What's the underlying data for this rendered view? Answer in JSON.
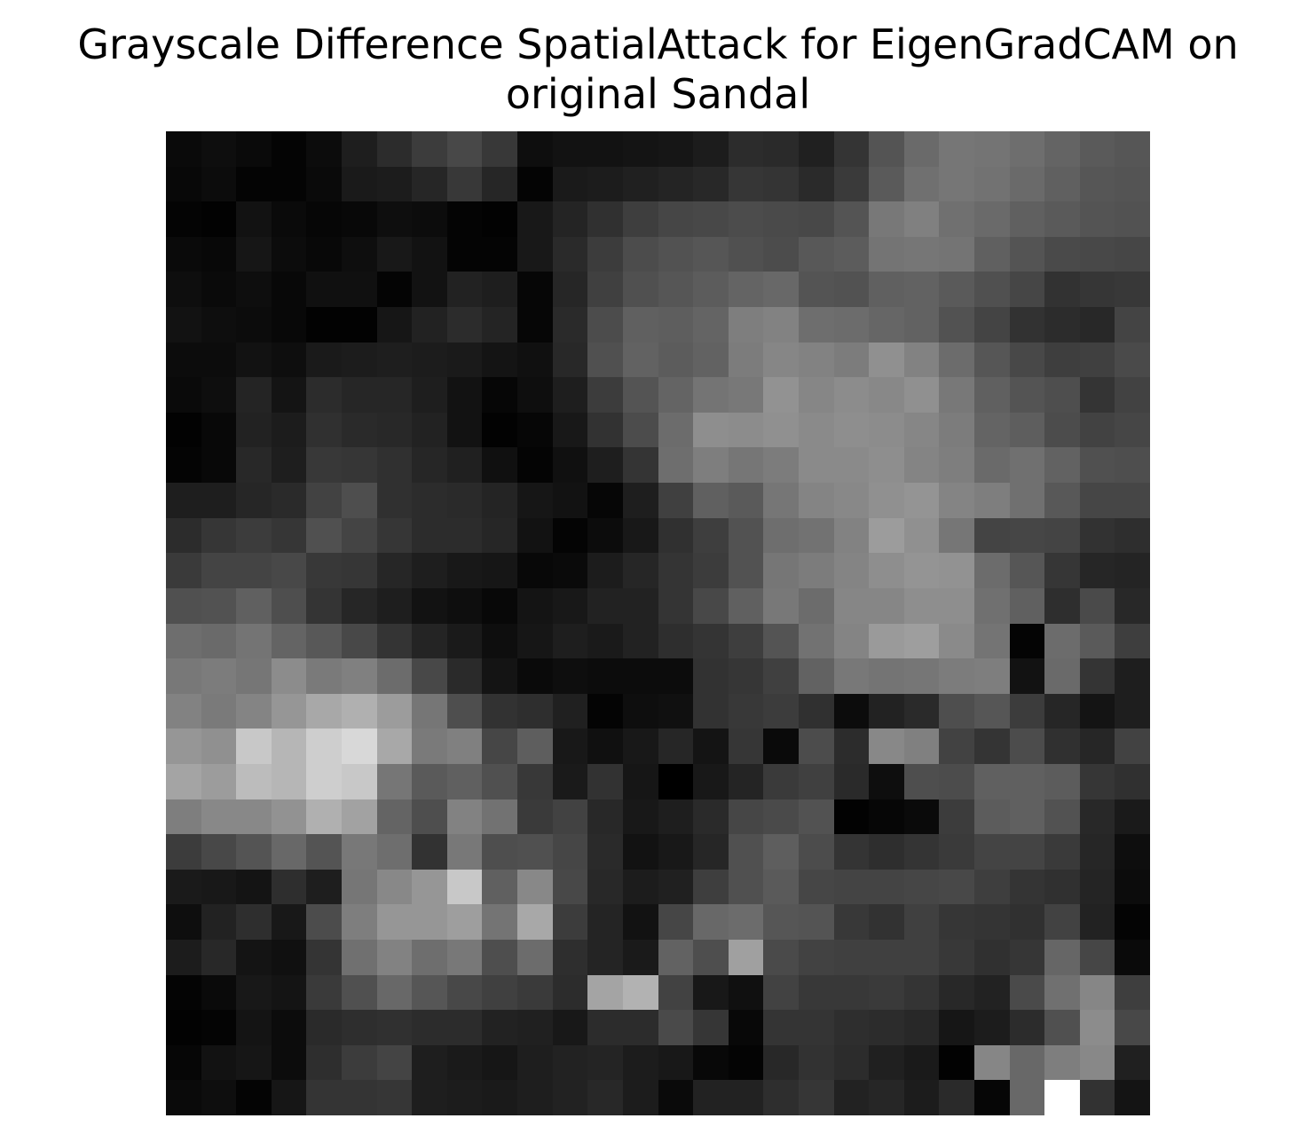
{
  "title_line_1": "Grayscale Difference SpatialAttack for EigenGradCAM on",
  "title_line_2": "original Sandal",
  "chart_data": {
    "type": "heatmap",
    "title": "Grayscale Difference SpatialAttack for EigenGradCAM on original Sandal",
    "colormap": "gray",
    "axes_visible": false,
    "value_range": [
      0,
      255
    ],
    "rows": 28,
    "cols": 28,
    "values": [
      [
        10,
        14,
        10,
        4,
        12,
        30,
        44,
        60,
        72,
        56,
        14,
        18,
        18,
        20,
        22,
        28,
        44,
        42,
        32,
        52,
        84,
        106,
        118,
        116,
        110,
        100,
        90,
        86
      ],
      [
        8,
        12,
        4,
        4,
        10,
        26,
        28,
        38,
        56,
        38,
        4,
        26,
        28,
        32,
        36,
        40,
        54,
        52,
        42,
        58,
        90,
        112,
        118,
        114,
        106,
        96,
        86,
        84
      ],
      [
        4,
        2,
        18,
        10,
        6,
        8,
        14,
        12,
        4,
        2,
        24,
        36,
        48,
        62,
        70,
        72,
        76,
        74,
        72,
        84,
        120,
        128,
        112,
        106,
        96,
        90,
        84,
        82
      ],
      [
        10,
        8,
        22,
        12,
        8,
        14,
        24,
        18,
        4,
        4,
        24,
        42,
        60,
        76,
        82,
        86,
        80,
        76,
        88,
        92,
        116,
        118,
        116,
        96,
        84,
        74,
        72,
        70
      ],
      [
        14,
        10,
        14,
        8,
        16,
        16,
        4,
        18,
        34,
        30,
        6,
        38,
        64,
        80,
        86,
        92,
        100,
        104,
        84,
        82,
        96,
        98,
        90,
        80,
        70,
        50,
        54,
        56
      ],
      [
        18,
        14,
        12,
        8,
        2,
        2,
        22,
        34,
        44,
        36,
        6,
        42,
        76,
        96,
        94,
        100,
        126,
        130,
        110,
        108,
        102,
        98,
        82,
        68,
        50,
        44,
        40,
        68
      ],
      [
        12,
        12,
        18,
        14,
        26,
        28,
        30,
        28,
        26,
        20,
        16,
        40,
        80,
        98,
        92,
        98,
        124,
        134,
        130,
        124,
        144,
        130,
        108,
        86,
        72,
        62,
        64,
        74
      ],
      [
        10,
        14,
        36,
        20,
        44,
        38,
        38,
        30,
        18,
        6,
        14,
        30,
        60,
        84,
        100,
        116,
        120,
        146,
        134,
        140,
        136,
        144,
        120,
        96,
        84,
        78,
        52,
        66
      ],
      [
        2,
        8,
        34,
        28,
        48,
        42,
        40,
        34,
        18,
        2,
        6,
        24,
        50,
        76,
        108,
        142,
        140,
        144,
        138,
        142,
        140,
        134,
        124,
        100,
        94,
        76,
        66,
        70
      ],
      [
        4,
        8,
        40,
        30,
        56,
        54,
        48,
        38,
        32,
        16,
        4,
        16,
        30,
        52,
        110,
        126,
        118,
        124,
        138,
        138,
        142,
        132,
        126,
        106,
        112,
        98,
        80,
        78
      ],
      [
        30,
        30,
        38,
        42,
        66,
        78,
        48,
        44,
        42,
        36,
        22,
        18,
        6,
        30,
        64,
        96,
        90,
        118,
        132,
        136,
        144,
        148,
        132,
        126,
        112,
        88,
        70,
        70
      ],
      [
        44,
        54,
        60,
        54,
        80,
        68,
        54,
        44,
        44,
        38,
        18,
        4,
        12,
        24,
        48,
        62,
        82,
        110,
        114,
        130,
        156,
        144,
        118,
        68,
        70,
        68,
        50,
        46
      ],
      [
        58,
        68,
        68,
        72,
        56,
        54,
        38,
        30,
        24,
        22,
        8,
        10,
        28,
        38,
        52,
        60,
        82,
        118,
        124,
        132,
        142,
        148,
        146,
        108,
        86,
        54,
        38,
        36
      ],
      [
        80,
        82,
        96,
        78,
        52,
        38,
        30,
        18,
        14,
        8,
        20,
        24,
        34,
        34,
        52,
        72,
        96,
        120,
        108,
        134,
        134,
        142,
        142,
        112,
        96,
        46,
        74,
        40
      ],
      [
        110,
        106,
        116,
        100,
        88,
        72,
        52,
        36,
        26,
        14,
        22,
        30,
        26,
        34,
        46,
        52,
        62,
        84,
        114,
        132,
        154,
        158,
        138,
        116,
        4,
        108,
        90,
        62
      ],
      [
        120,
        124,
        118,
        140,
        122,
        128,
        108,
        72,
        42,
        20,
        10,
        14,
        12,
        12,
        12,
        50,
        54,
        64,
        98,
        120,
        116,
        118,
        124,
        126,
        18,
        106,
        52,
        30
      ],
      [
        130,
        122,
        132,
        150,
        168,
        176,
        156,
        118,
        78,
        50,
        46,
        32,
        4,
        14,
        16,
        50,
        56,
        60,
        48,
        12,
        34,
        42,
        78,
        86,
        60,
        38,
        20,
        30
      ],
      [
        150,
        144,
        200,
        182,
        206,
        216,
        168,
        122,
        128,
        70,
        94,
        24,
        16,
        24,
        38,
        20,
        54,
        10,
        76,
        44,
        136,
        128,
        66,
        52,
        76,
        48,
        38,
        66
      ],
      [
        164,
        156,
        188,
        182,
        206,
        200,
        118,
        90,
        96,
        80,
        56,
        26,
        50,
        22,
        0,
        24,
        36,
        58,
        64,
        42,
        14,
        78,
        76,
        96,
        96,
        92,
        54,
        48
      ],
      [
        126,
        136,
        136,
        146,
        176,
        162,
        100,
        78,
        130,
        114,
        58,
        66,
        40,
        24,
        30,
        42,
        70,
        74,
        82,
        2,
        6,
        10,
        60,
        92,
        96,
        82,
        40,
        26
      ],
      [
        60,
        72,
        84,
        104,
        84,
        120,
        110,
        50,
        120,
        78,
        80,
        70,
        42,
        18,
        24,
        38,
        80,
        94,
        76,
        52,
        46,
        52,
        58,
        68,
        68,
        58,
        38,
        14
      ],
      [
        26,
        24,
        20,
        46,
        30,
        118,
        136,
        150,
        200,
        96,
        136,
        72,
        40,
        28,
        32,
        62,
        80,
        90,
        70,
        68,
        68,
        70,
        72,
        62,
        52,
        48,
        36,
        12
      ],
      [
        14,
        34,
        46,
        24,
        76,
        126,
        150,
        150,
        158,
        116,
        168,
        60,
        36,
        18,
        70,
        104,
        108,
        86,
        84,
        56,
        50,
        64,
        54,
        52,
        48,
        66,
        34,
        4
      ],
      [
        28,
        40,
        20,
        16,
        52,
        112,
        130,
        110,
        120,
        78,
        108,
        46,
        36,
        26,
        98,
        78,
        160,
        74,
        66,
        64,
        64,
        64,
        56,
        48,
        54,
        102,
        70,
        10
      ],
      [
        4,
        10,
        24,
        20,
        58,
        80,
        104,
        86,
        72,
        64,
        58,
        44,
        164,
        178,
        66,
        24,
        16,
        66,
        56,
        56,
        58,
        52,
        40,
        34,
        74,
        112,
        134,
        62
      ],
      [
        2,
        4,
        20,
        12,
        42,
        46,
        48,
        44,
        44,
        34,
        32,
        24,
        44,
        44,
        74,
        54,
        8,
        52,
        52,
        46,
        44,
        40,
        22,
        28,
        44,
        80,
        140,
        72
      ],
      [
        6,
        18,
        22,
        12,
        46,
        60,
        68,
        30,
        26,
        22,
        30,
        34,
        36,
        28,
        24,
        8,
        4,
        40,
        50,
        44,
        32,
        26,
        2,
        134,
        104,
        126,
        136,
        32
      ],
      [
        10,
        14,
        4,
        22,
        52,
        52,
        54,
        30,
        28,
        26,
        30,
        34,
        40,
        28,
        10,
        34,
        34,
        46,
        54,
        34,
        38,
        28,
        42,
        6,
        104,
        255,
        50,
        20
      ]
    ]
  }
}
